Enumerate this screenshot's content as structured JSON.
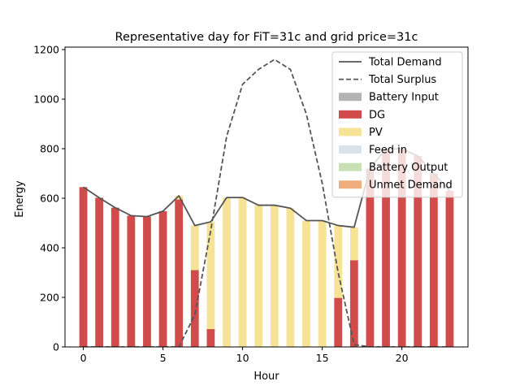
{
  "chart_data": {
    "type": "bar",
    "title": "Representative day for FiT=31c and grid price=31c",
    "xlabel": "Hour",
    "ylabel": "Energy",
    "xlim": [
      -1.15,
      24.15
    ],
    "ylim": [
      0,
      1210
    ],
    "xticks": [
      0,
      5,
      10,
      15,
      20
    ],
    "yticks": [
      0,
      200,
      400,
      600,
      800,
      1000,
      1200
    ],
    "grid": false,
    "legend_position": "upper right",
    "hours": [
      0,
      1,
      2,
      3,
      4,
      5,
      6,
      7,
      8,
      9,
      10,
      11,
      12,
      13,
      14,
      15,
      16,
      17,
      18,
      19,
      20,
      21,
      22,
      23
    ],
    "series": [
      {
        "name": "Total Demand",
        "kind": "line",
        "color": "#555555",
        "dash": "solid",
        "values": [
          645,
          602,
          562,
          530,
          526,
          548,
          610,
          490,
          505,
          603,
          603,
          572,
          572,
          560,
          510,
          510,
          490,
          483,
          720,
          800,
          800,
          770,
          700,
          630
        ]
      },
      {
        "name": "Total Surplus",
        "kind": "line",
        "color": "#555555",
        "dash": "dashed",
        "values": [
          0,
          0,
          0,
          0,
          0,
          0,
          0,
          130,
          470,
          850,
          1060,
          1120,
          1160,
          1120,
          940,
          660,
          300,
          10,
          0,
          0,
          0,
          0,
          0,
          0
        ]
      },
      {
        "name": "Battery Input",
        "kind": "bar",
        "color": "#b3b3b3",
        "values": [
          0,
          0,
          0,
          0,
          0,
          0,
          0,
          0,
          0,
          0,
          0,
          0,
          0,
          0,
          0,
          0,
          0,
          0,
          0,
          0,
          0,
          0,
          0,
          0
        ]
      },
      {
        "name": "DG",
        "kind": "bar",
        "color": "#d24b4b",
        "values": [
          645,
          602,
          562,
          530,
          526,
          548,
          595,
          310,
          72,
          0,
          0,
          0,
          0,
          0,
          0,
          0,
          198,
          350,
          720,
          800,
          800,
          770,
          700,
          630
        ]
      },
      {
        "name": "PV",
        "kind": "bar",
        "color": "#f7e396",
        "values": [
          0,
          0,
          0,
          0,
          0,
          0,
          15,
          180,
          433,
          603,
          603,
          572,
          572,
          560,
          510,
          510,
          292,
          133,
          0,
          0,
          0,
          0,
          0,
          0
        ]
      },
      {
        "name": "Feed in",
        "kind": "bar",
        "color": "#d9e3ea",
        "values": [
          0,
          0,
          0,
          0,
          0,
          0,
          0,
          0,
          0,
          0,
          0,
          0,
          0,
          0,
          0,
          0,
          0,
          0,
          0,
          0,
          0,
          0,
          0,
          0
        ]
      },
      {
        "name": "Battery Output",
        "kind": "bar",
        "color": "#c8e0b3",
        "values": [
          0,
          0,
          0,
          0,
          0,
          0,
          0,
          0,
          0,
          0,
          0,
          0,
          0,
          0,
          0,
          0,
          0,
          0,
          0,
          0,
          0,
          0,
          0,
          0
        ]
      },
      {
        "name": "Unmet Demand",
        "kind": "bar",
        "color": "#eeae7e",
        "values": [
          0,
          0,
          0,
          0,
          0,
          0,
          0,
          0,
          0,
          0,
          0,
          0,
          0,
          0,
          0,
          0,
          0,
          0,
          0,
          0,
          0,
          0,
          0,
          0
        ]
      }
    ]
  }
}
